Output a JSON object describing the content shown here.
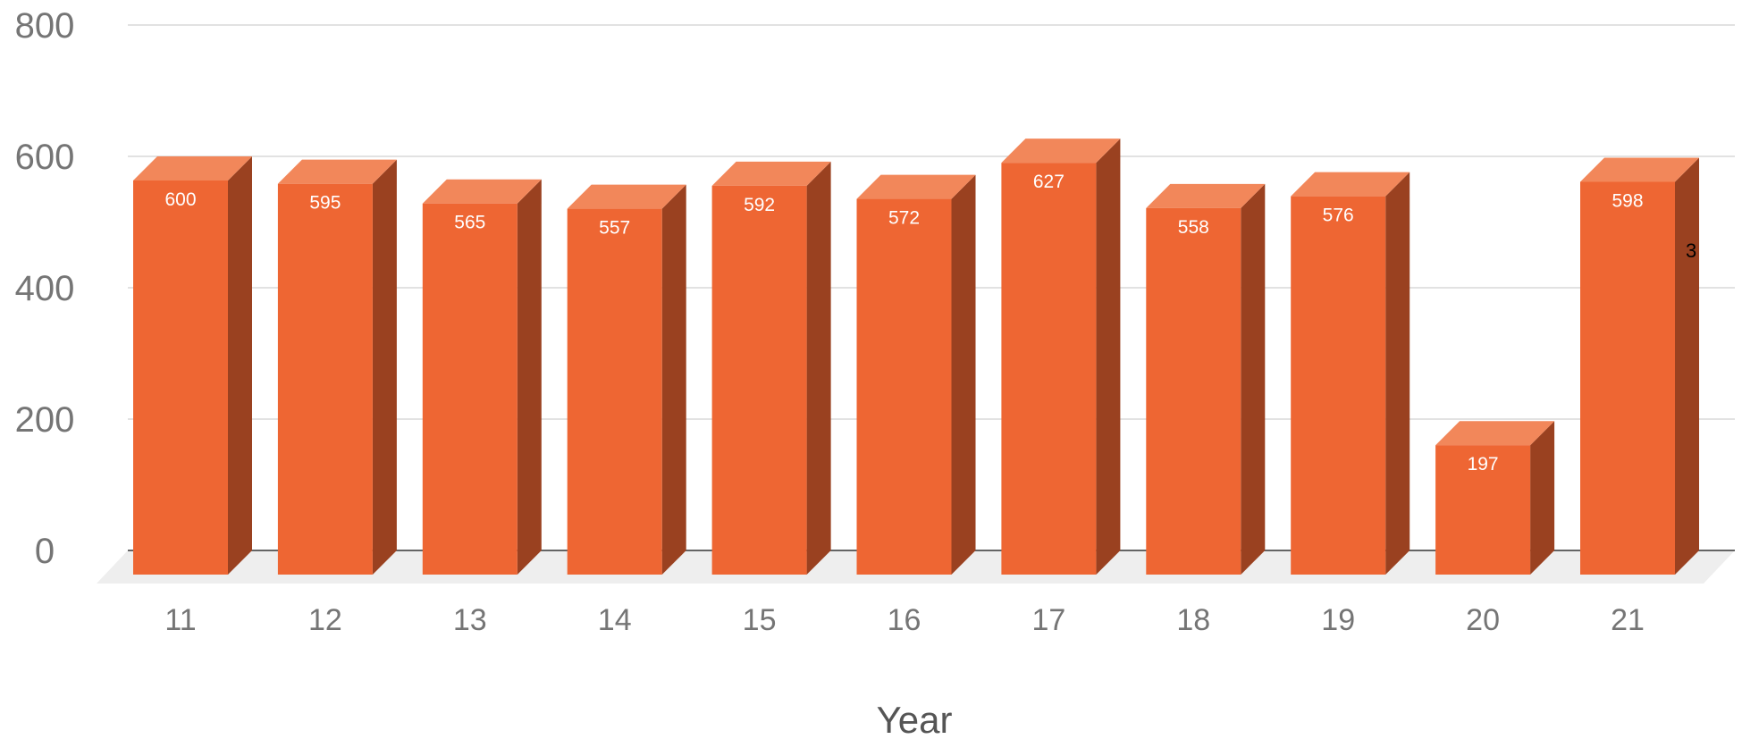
{
  "chart_data": {
    "type": "bar",
    "style": "3d",
    "categories": [
      "11",
      "12",
      "13",
      "14",
      "15",
      "16",
      "17",
      "18",
      "19",
      "20",
      "21"
    ],
    "values": [
      600,
      595,
      565,
      557,
      592,
      572,
      627,
      558,
      576,
      197,
      598
    ],
    "data_labels": [
      "600",
      "595",
      "565",
      "557",
      "592",
      "572",
      "627",
      "558",
      "576",
      "197",
      "598"
    ],
    "title": "",
    "xlabel": "Year",
    "ylabel": "",
    "ylim": [
      0,
      800
    ],
    "yticks": [
      0,
      200,
      400,
      600,
      800
    ],
    "ytick_labels": [
      "0",
      "200",
      "400",
      "600",
      "800"
    ],
    "grid": true,
    "legend": "none",
    "annotation": "3",
    "colors": {
      "bar_front": "#ee6633",
      "bar_top": "#f2875a",
      "bar_side": "#9a4120",
      "floor": "#eeeeee",
      "gridline": "#d0d0d0",
      "baseline": "#333333"
    }
  }
}
